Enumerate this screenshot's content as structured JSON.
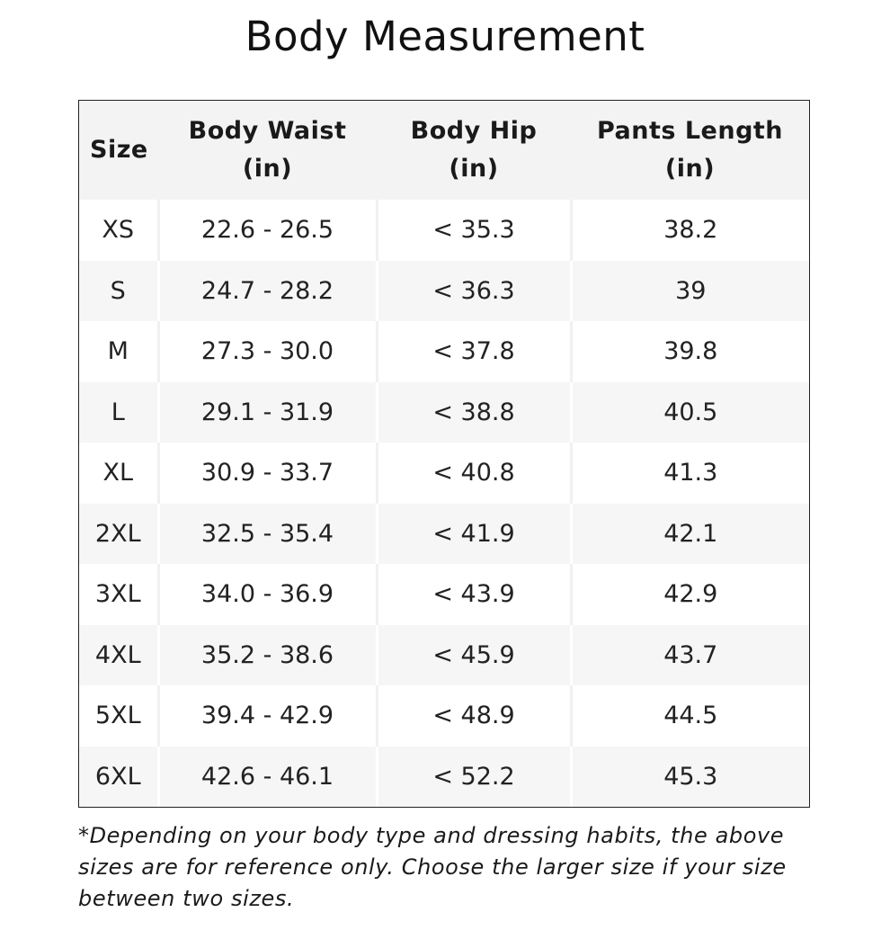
{
  "title": "Body Measurement",
  "table": {
    "headers": [
      {
        "line1": "Size",
        "line2": ""
      },
      {
        "line1": "Body Waist",
        "line2": "(in)"
      },
      {
        "line1": "Body Hip",
        "line2": "(in)"
      },
      {
        "line1": "Pants Length",
        "line2": "(in)"
      }
    ],
    "rows": [
      [
        "XS",
        "22.6 - 26.5",
        "< 35.3",
        "38.2"
      ],
      [
        "S",
        "24.7 - 28.2",
        "< 36.3",
        "39"
      ],
      [
        "M",
        "27.3 - 30.0",
        "< 37.8",
        "39.8"
      ],
      [
        "L",
        "29.1 - 31.9",
        "< 38.8",
        "40.5"
      ],
      [
        "XL",
        "30.9 - 33.7",
        "< 40.8",
        "41.3"
      ],
      [
        "2XL",
        "32.5 - 35.4",
        "< 41.9",
        "42.1"
      ],
      [
        "3XL",
        "34.0 - 36.9",
        "< 43.9",
        "42.9"
      ],
      [
        "4XL",
        "35.2 - 38.6",
        "< 45.9",
        "43.7"
      ],
      [
        "5XL",
        "39.4 - 42.9",
        "< 48.9",
        "44.5"
      ],
      [
        "6XL",
        "42.6 - 46.1",
        "< 52.2",
        "45.3"
      ]
    ]
  },
  "note": "*Depending on your body type and dressing habits, the above sizes are for reference only. Choose the larger size if your size between two sizes."
}
